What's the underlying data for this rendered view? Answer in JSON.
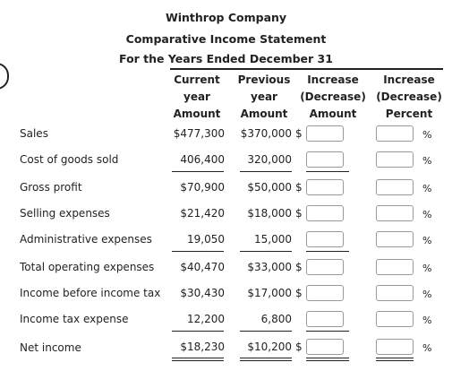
{
  "header": {
    "company": "Winthrop Company",
    "statement": "Comparative Income Statement",
    "period": "For the Years Ended December 31"
  },
  "columns": {
    "current": [
      "Current",
      "year",
      "Amount"
    ],
    "previous": [
      "Previous",
      "year",
      "Amount"
    ],
    "inc_amount": [
      "Increase",
      "(Decrease)",
      "Amount"
    ],
    "inc_percent": [
      "Increase",
      "(Decrease)",
      "Percent"
    ]
  },
  "rows": [
    {
      "label": "Sales",
      "current": "$477,300",
      "previous": "$370,000",
      "dollar": "$",
      "pct": "%"
    },
    {
      "label": "Cost of goods sold",
      "current": "406,400",
      "previous": "320,000",
      "dollar": "",
      "pct": "%"
    },
    {
      "label": "Gross profit",
      "current": "$70,900",
      "previous": "$50,000",
      "dollar": "$",
      "pct": "%"
    },
    {
      "label": "Selling expenses",
      "current": "$21,420",
      "previous": "$18,000",
      "dollar": "$",
      "pct": "%"
    },
    {
      "label": "Administrative expenses",
      "current": "19,050",
      "previous": "15,000",
      "dollar": "",
      "pct": "%"
    },
    {
      "label": "Total operating expenses",
      "current": "$40,470",
      "previous": "$33,000",
      "dollar": "$",
      "pct": "%"
    },
    {
      "label": "Income before income tax",
      "current": "$30,430",
      "previous": "$17,000",
      "dollar": "$",
      "pct": "%"
    },
    {
      "label": "Income tax expense",
      "current": "12,200",
      "previous": "6,800",
      "dollar": "",
      "pct": "%"
    },
    {
      "label": "Net income",
      "current": "$18,230",
      "previous": "$10,200",
      "dollar": "$",
      "pct": "%"
    }
  ]
}
